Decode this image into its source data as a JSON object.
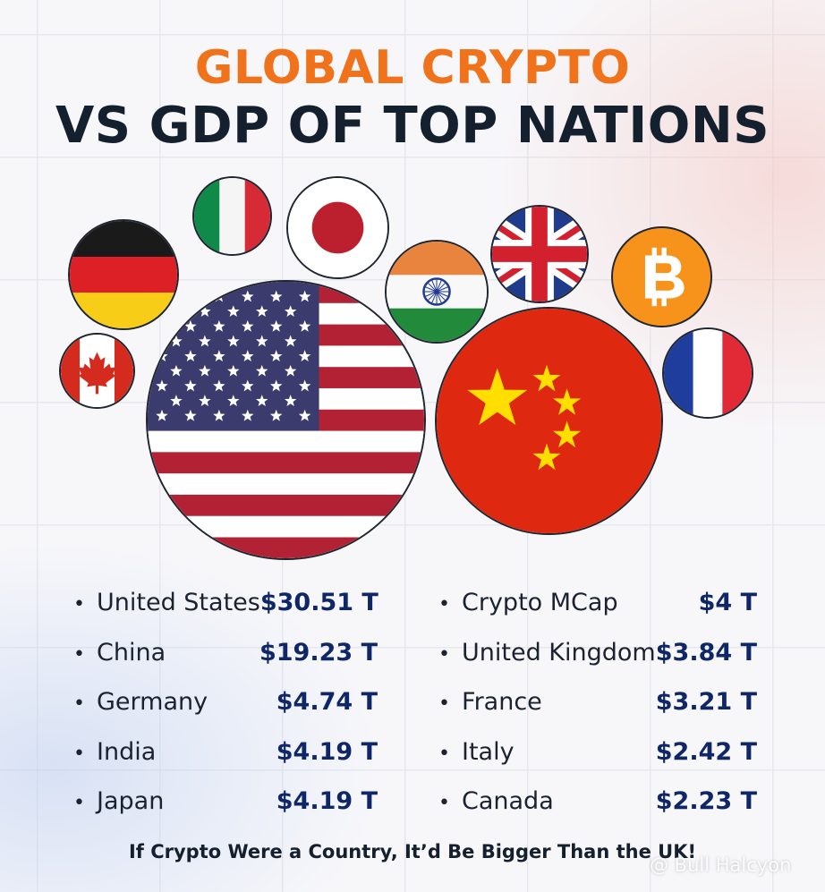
{
  "header": {
    "title_line1": "GLOBAL CRYPTO",
    "title_line2": "VS GDP OF TOP NATIONS"
  },
  "colors": {
    "accent_orange": "#f0731c",
    "title_dark": "#14202e",
    "value_blue": "#0f2766",
    "bitcoin_orange": "#f7931a"
  },
  "flags": [
    {
      "icon": "united-states-flag-icon"
    },
    {
      "icon": "china-flag-icon"
    },
    {
      "icon": "germany-flag-icon"
    },
    {
      "icon": "italy-flag-icon"
    },
    {
      "icon": "japan-flag-icon"
    },
    {
      "icon": "india-flag-icon"
    },
    {
      "icon": "united-kingdom-flag-icon"
    },
    {
      "icon": "bitcoin-icon"
    },
    {
      "icon": "france-flag-icon"
    },
    {
      "icon": "canada-flag-icon"
    }
  ],
  "list_left": [
    {
      "name": "United States",
      "value": "$30.51 T"
    },
    {
      "name": "China",
      "value": "$19.23 T"
    },
    {
      "name": "Germany",
      "value": "$4.74 T"
    },
    {
      "name": "India",
      "value": "$4.19 T"
    },
    {
      "name": "Japan",
      "value": "$4.19 T"
    }
  ],
  "list_right": [
    {
      "name": "Crypto MCap",
      "value": "$4 T"
    },
    {
      "name": "United Kingdom",
      "value": "$3.84 T"
    },
    {
      "name": "France",
      "value": "$3.21 T"
    },
    {
      "name": "Italy",
      "value": "$2.42 T"
    },
    {
      "name": "Canada",
      "value": "$2.23 T"
    }
  ],
  "footer": {
    "tagline": "If Crypto Were a Country, It’d Be Bigger Than the UK!",
    "watermark": "@ Bull Halcyon"
  }
}
